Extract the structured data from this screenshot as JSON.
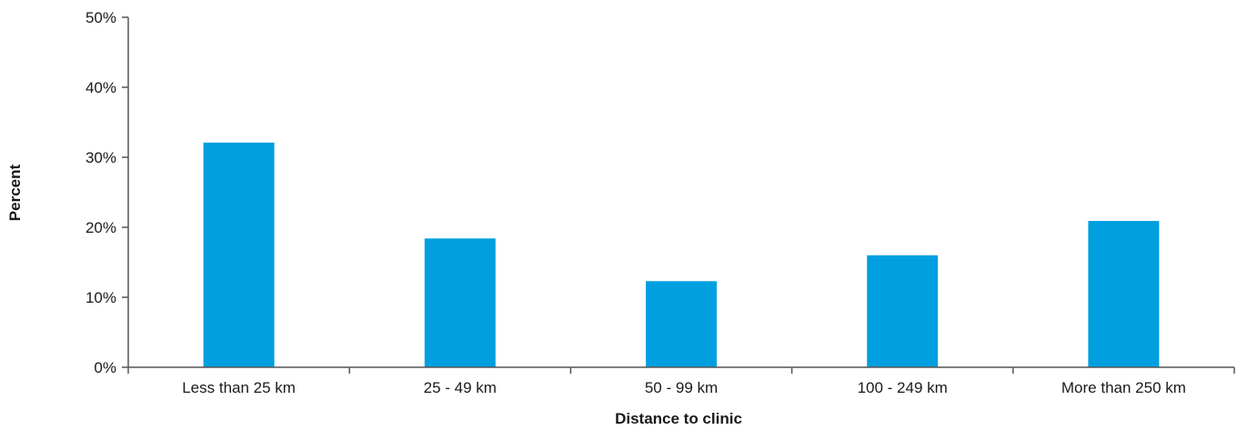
{
  "chart_data": {
    "type": "bar",
    "title": "",
    "xlabel": "Distance to clinic",
    "ylabel": "Percent",
    "categories": [
      "Less than 25 km",
      "25 - 49 km",
      "50 - 99 km",
      "100 - 249 km",
      "More than 250 km"
    ],
    "values": [
      32.1,
      18.4,
      12.3,
      16.0,
      20.9
    ],
    "ylim": [
      0,
      50
    ],
    "yticks": [
      0,
      10,
      20,
      30,
      40,
      50
    ],
    "ytick_labels": [
      "0%",
      "10%",
      "20%",
      "30%",
      "40%",
      "50%"
    ],
    "grid": false,
    "legend": "none",
    "bar_color": "#009FDF"
  }
}
